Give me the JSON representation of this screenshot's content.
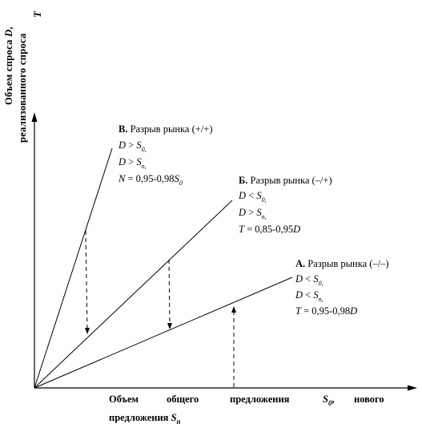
{
  "y_axis": {
    "line1": "Объем спроса",
    "line1_var": "D",
    "line1_end": ",",
    "line2": "реализованного спроса",
    "line3_var": "T"
  },
  "x_axis": {
    "w1": "Объем",
    "w2": "общего",
    "w3": "предложения",
    "var": "S",
    "var_sub": "0",
    "comma": ",",
    "w4": "нового",
    "line2": "предложения",
    "line2_var": "S",
    "line2_sub": "n"
  },
  "case_v": {
    "letter": "В.",
    "title": " Разрыв рынка (+/+)",
    "cond1_lhs": "D",
    "cond1_op": " > ",
    "cond1_rhs": "S",
    "cond1_sub": "0",
    "cond1_end": ",",
    "cond2_lhs": "D",
    "cond2_op": " > ",
    "cond2_rhs": "S",
    "cond2_sub": "n",
    "cond2_end": ",",
    "formula_var": "N",
    "formula_mid": " = 0,95-0,98",
    "formula_end": "S",
    "formula_sub": "0"
  },
  "case_b": {
    "letter": "Б.",
    "title": " Разрыв рынка (–/+)",
    "cond1_lhs": "D",
    "cond1_op": " < ",
    "cond1_rhs": "S",
    "cond1_sub": "0",
    "cond1_end": ",",
    "cond2_lhs": "D",
    "cond2_op": " > ",
    "cond2_rhs": "S",
    "cond2_sub": "n",
    "cond2_end": ",",
    "formula_var": "T",
    "formula_mid": " = 0,85-0,95",
    "formula_end": "D"
  },
  "case_a": {
    "letter": "А.",
    "title": " Разрыв рынка (–/–)",
    "cond1_lhs": "D",
    "cond1_op": " < ",
    "cond1_rhs": "S",
    "cond1_sub": "0",
    "cond1_end": ",",
    "cond2_lhs": "D",
    "cond2_op": " < ",
    "cond2_rhs": "S",
    "cond2_sub": "n",
    "cond2_end": ",",
    "formula_var": "T",
    "formula_mid": " = 0,95-0,98",
    "formula_end": "D"
  }
}
